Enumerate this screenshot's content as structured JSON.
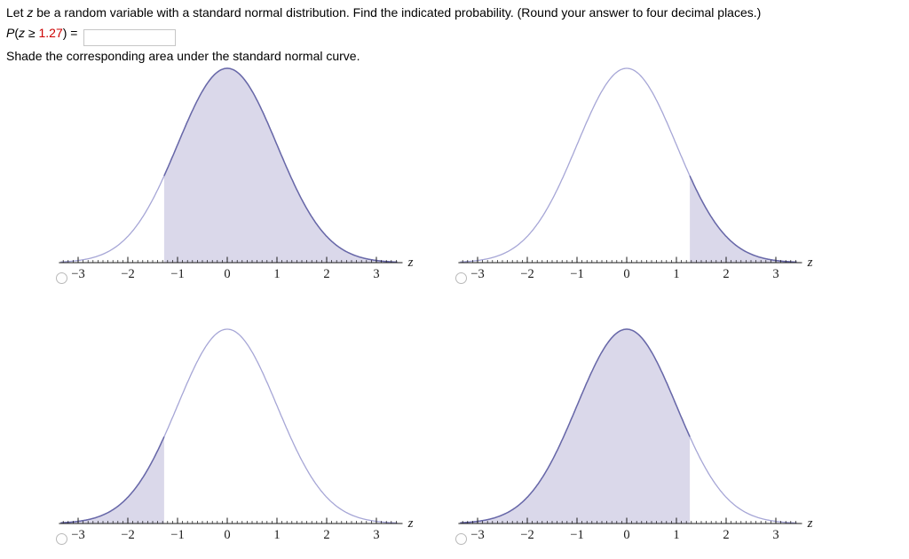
{
  "colors": {
    "value_red": "#cc0000",
    "curve_light": "#a6a6d6",
    "curve_dark": "#6868a8",
    "shade_fill": "#dad8ea",
    "axis": "#1a1a1a",
    "tick_label": "#1a1a1a"
  },
  "question": {
    "intro_pre": "Let ",
    "intro_var": "z",
    "intro_post": " be a random variable with a standard normal distribution. Find the indicated probability. (Round your answer to four decimal places.)",
    "expr_P": "P",
    "expr_open": "(",
    "expr_z": "z",
    "expr_geq": " ≥ ",
    "expr_value": "1.27",
    "expr_close": ") = ",
    "answer_value": "",
    "instruction": "Shade the corresponding area under the standard normal curve."
  },
  "chart_data": [
    {
      "type": "area",
      "curve": "standard normal pdf",
      "x_range": [
        -3.35,
        3.42
      ],
      "tick_values": [
        -3,
        -2,
        -1,
        0,
        1,
        2,
        3
      ],
      "tick_labels": [
        "−3",
        "−2",
        "−1",
        "0",
        "1",
        "2",
        "3"
      ],
      "xlabel": "z",
      "shade_from": -1.27,
      "shade_to": 3.42
    },
    {
      "type": "area",
      "curve": "standard normal pdf",
      "x_range": [
        -3.35,
        3.42
      ],
      "tick_values": [
        -3,
        -2,
        -1,
        0,
        1,
        2,
        3
      ],
      "tick_labels": [
        "−3",
        "−2",
        "−1",
        "0",
        "1",
        "2",
        "3"
      ],
      "xlabel": "z",
      "shade_from": 1.27,
      "shade_to": 3.42
    },
    {
      "type": "area",
      "curve": "standard normal pdf",
      "x_range": [
        -3.35,
        3.42
      ],
      "tick_values": [
        -3,
        -2,
        -1,
        0,
        1,
        2,
        3
      ],
      "tick_labels": [
        "−3",
        "−2",
        "−1",
        "0",
        "1",
        "2",
        "3"
      ],
      "xlabel": "z",
      "shade_from": -3.35,
      "shade_to": -1.27
    },
    {
      "type": "area",
      "curve": "standard normal pdf",
      "x_range": [
        -3.35,
        3.42
      ],
      "tick_values": [
        -3,
        -2,
        -1,
        0,
        1,
        2,
        3
      ],
      "tick_labels": [
        "−3",
        "−2",
        "−1",
        "0",
        "1",
        "2",
        "3"
      ],
      "xlabel": "z",
      "shade_from": -3.35,
      "shade_to": 1.27
    }
  ]
}
